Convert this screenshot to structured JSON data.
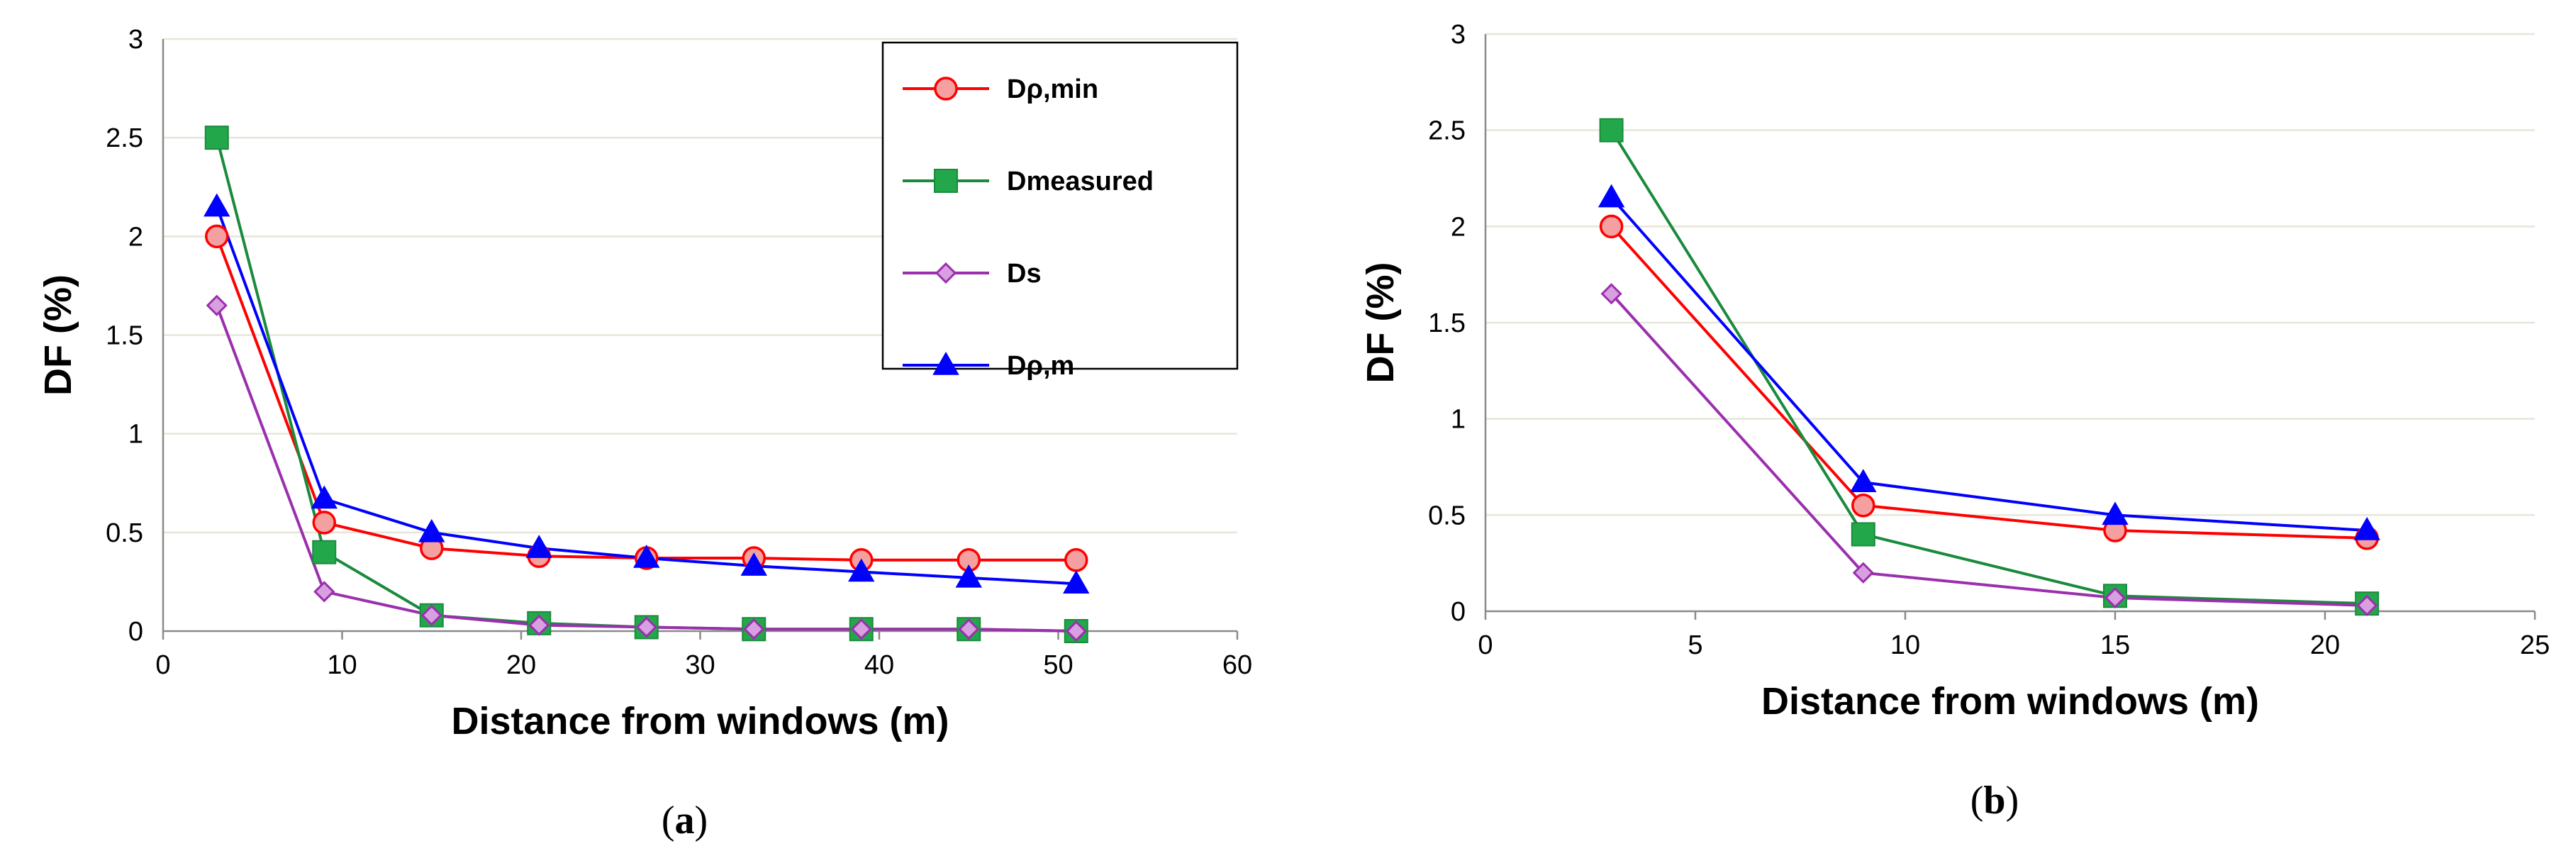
{
  "chart_data": [
    {
      "type": "line",
      "panel_label": "a",
      "xlabel": "Distance from windows (m)",
      "ylabel": "DF (%)",
      "xlim": [
        0,
        60
      ],
      "ylim": [
        0,
        3
      ],
      "xticks": [
        "0",
        "10",
        "20",
        "30",
        "40",
        "50",
        "60"
      ],
      "yticks": [
        "0",
        "0.5",
        "1",
        "1.5",
        "2",
        "2.5",
        "3"
      ],
      "legend_position": "top-right",
      "series": [
        {
          "name": "Dρ,min",
          "color": "#ff0000",
          "fill": "#f4a0a0",
          "marker": "circle",
          "x": [
            3,
            9,
            15,
            21,
            27,
            33,
            39,
            45,
            51
          ],
          "y": [
            2.0,
            0.55,
            0.42,
            0.38,
            0.37,
            0.37,
            0.36,
            0.36,
            0.36
          ]
        },
        {
          "name": "Dmeasured",
          "color": "#1a8a3c",
          "fill": "#22a84a",
          "marker": "square",
          "x": [
            3,
            9,
            15,
            21,
            27,
            33,
            39,
            45,
            51
          ],
          "y": [
            2.5,
            0.4,
            0.08,
            0.04,
            0.02,
            0.01,
            0.01,
            0.01,
            0.0
          ]
        },
        {
          "name": "Ds",
          "color": "#9b2fae",
          "fill": "#d8a0e0",
          "marker": "diamond",
          "x": [
            3,
            9,
            15,
            21,
            27,
            33,
            39,
            45,
            51
          ],
          "y": [
            1.65,
            0.2,
            0.08,
            0.03,
            0.02,
            0.01,
            0.01,
            0.01,
            0.0
          ]
        },
        {
          "name": "Dρ,m",
          "color": "#0000ff",
          "fill": "#0000ff",
          "marker": "triangle",
          "x": [
            3,
            9,
            15,
            21,
            27,
            33,
            39,
            45,
            51
          ],
          "y": [
            2.15,
            0.67,
            0.5,
            0.42,
            0.37,
            0.33,
            0.3,
            0.27,
            0.24
          ]
        }
      ]
    },
    {
      "type": "line",
      "panel_label": "b",
      "xlabel": "Distance from windows (m)",
      "ylabel": "DF (%)",
      "xlim": [
        0,
        25
      ],
      "ylim": [
        0,
        3
      ],
      "xticks": [
        "0",
        "5",
        "10",
        "15",
        "20",
        "25"
      ],
      "yticks": [
        "0",
        "0.5",
        "1",
        "1.5",
        "2",
        "2.5",
        "3"
      ],
      "series": [
        {
          "name": "Dρ,min",
          "color": "#ff0000",
          "fill": "#f4a0a0",
          "marker": "circle",
          "x": [
            3,
            9,
            15,
            21
          ],
          "y": [
            2.0,
            0.55,
            0.42,
            0.38
          ]
        },
        {
          "name": "Dmeasured",
          "color": "#1a8a3c",
          "fill": "#22a84a",
          "marker": "square",
          "x": [
            3,
            9,
            15,
            21
          ],
          "y": [
            2.5,
            0.4,
            0.08,
            0.04
          ]
        },
        {
          "name": "Ds",
          "color": "#9b2fae",
          "fill": "#d8a0e0",
          "marker": "diamond",
          "x": [
            3,
            9,
            15,
            21
          ],
          "y": [
            1.65,
            0.2,
            0.07,
            0.03
          ]
        },
        {
          "name": "Dρ,m",
          "color": "#0000ff",
          "fill": "#0000ff",
          "marker": "triangle",
          "x": [
            3,
            9,
            15,
            21
          ],
          "y": [
            2.15,
            0.67,
            0.5,
            0.42
          ]
        }
      ]
    }
  ]
}
